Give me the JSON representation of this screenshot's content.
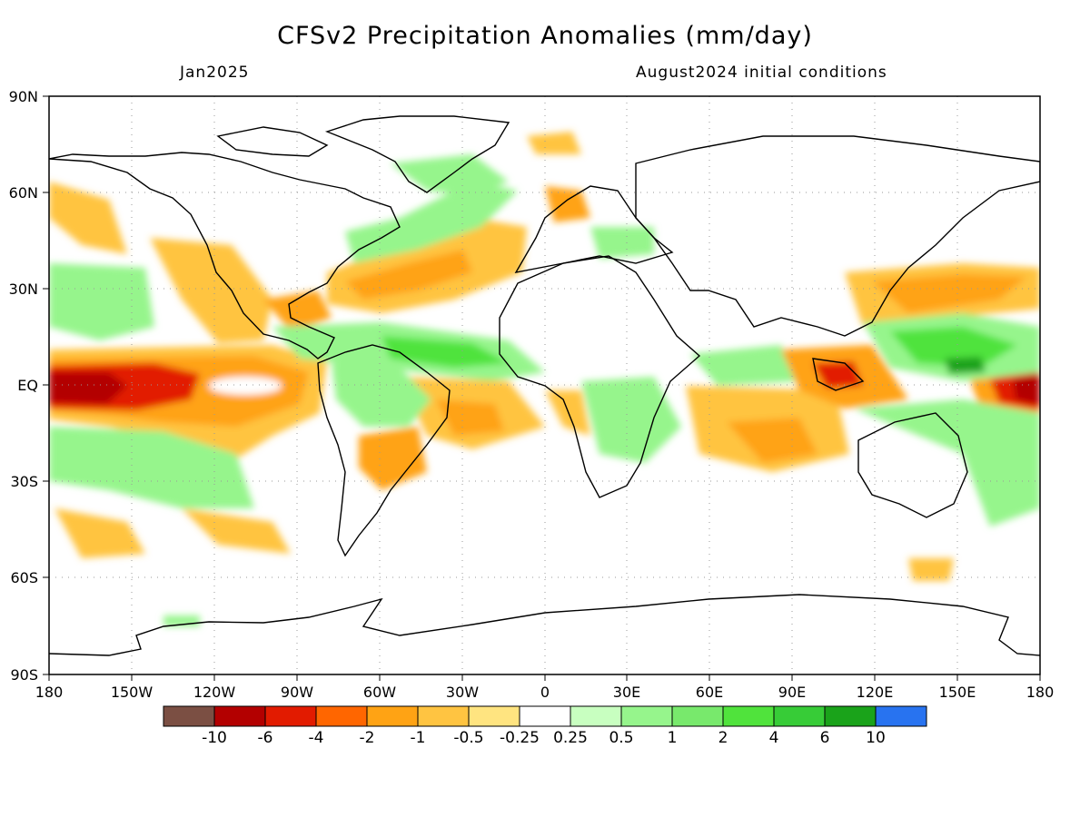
{
  "title": "CFSv2 Precipitation Anomalies (mm/day)",
  "subtitle_left": "Jan2025",
  "subtitle_right": "August2024 initial conditions",
  "map": {
    "lon_range": [
      -180,
      180
    ],
    "lat_range": [
      -90,
      90
    ],
    "x_ticks": [
      "180",
      "150W",
      "120W",
      "90W",
      "60W",
      "30W",
      "0",
      "30E",
      "60E",
      "90E",
      "120E",
      "150E",
      "180"
    ],
    "y_ticks": [
      "90N",
      "60N",
      "30N",
      "EQ",
      "30S",
      "60S",
      "90S"
    ],
    "grid": "dotted"
  },
  "colorbar": {
    "colors": [
      "#7b4f43",
      "#b30000",
      "#e21b00",
      "#ff6600",
      "#ffa314",
      "#ffc441",
      "#ffe480",
      "#ffffff",
      "#c8ffc0",
      "#96f58c",
      "#78e96c",
      "#50e33c",
      "#37cc37",
      "#1aa31a",
      "#2873f0"
    ],
    "labels": [
      "-10",
      "-6",
      "-4",
      "-2",
      "-1",
      "-0.5",
      "-0.25",
      "0.25",
      "0.5",
      "1",
      "2",
      "4",
      "6",
      "10"
    ]
  }
}
